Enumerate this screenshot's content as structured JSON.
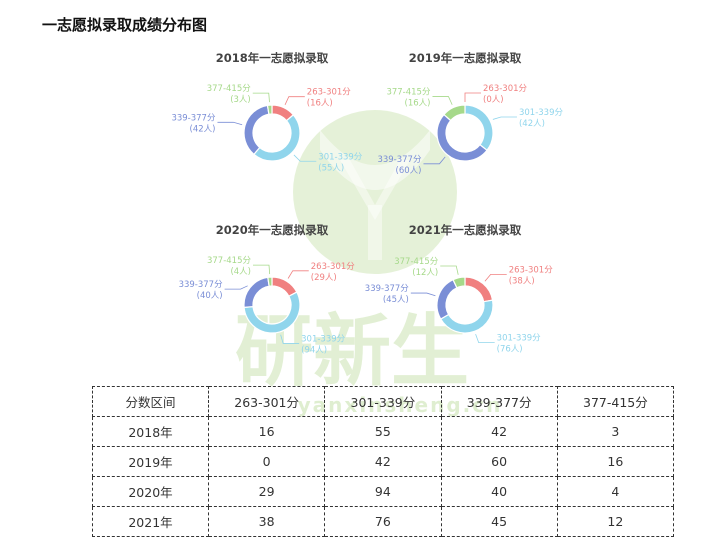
{
  "page": {
    "title": "一志愿拟录取成绩分布图"
  },
  "watermark": {
    "text": "研新生",
    "url": "yanxinsheng.cn"
  },
  "colors": {
    "263-301分": "#f08080",
    "301-339分": "#90d5ec",
    "339-377分": "#7a8ed6",
    "377-415分": "#a6d98a",
    "logo": "#cfe6b8"
  },
  "chart_data": [
    {
      "type": "pie",
      "title": "2018年一志愿拟录取",
      "categories": [
        "263-301分",
        "301-339分",
        "339-377分",
        "377-415分"
      ],
      "values": [
        16,
        55,
        42,
        3
      ],
      "data_labels": [
        "(16人)",
        "(55人)",
        "(42人)",
        "(3人)"
      ]
    },
    {
      "type": "pie",
      "title": "2019年一志愿拟录取",
      "categories": [
        "263-301分",
        "301-339分",
        "339-377分",
        "377-415分"
      ],
      "values": [
        0,
        42,
        60,
        16
      ],
      "data_labels": [
        "(0人)",
        "(42人)",
        "(60人)",
        "(16人)"
      ]
    },
    {
      "type": "pie",
      "title": "2020年一志愿拟录取",
      "categories": [
        "263-301分",
        "301-339分",
        "339-377分",
        "377-415分"
      ],
      "values": [
        29,
        94,
        40,
        4
      ],
      "data_labels": [
        "(29人)",
        "(94人)",
        "(40人)",
        "(4人)"
      ]
    },
    {
      "type": "pie",
      "title": "2021年一志愿拟录取",
      "categories": [
        "263-301分",
        "301-339分",
        "339-377分",
        "377-415分"
      ],
      "values": [
        38,
        76,
        45,
        12
      ],
      "data_labels": [
        "(38人)",
        "(76人)",
        "(45人)",
        "(12人)"
      ]
    },
    {
      "type": "table",
      "columns": [
        "分数区间",
        "263-301分",
        "301-339分",
        "339-377分",
        "377-415分"
      ],
      "rows": [
        [
          "2018年",
          "16",
          "55",
          "42",
          "3"
        ],
        [
          "2019年",
          "0",
          "42",
          "60",
          "16"
        ],
        [
          "2020年",
          "29",
          "94",
          "40",
          "4"
        ],
        [
          "2021年",
          "38",
          "76",
          "45",
          "12"
        ]
      ]
    }
  ]
}
